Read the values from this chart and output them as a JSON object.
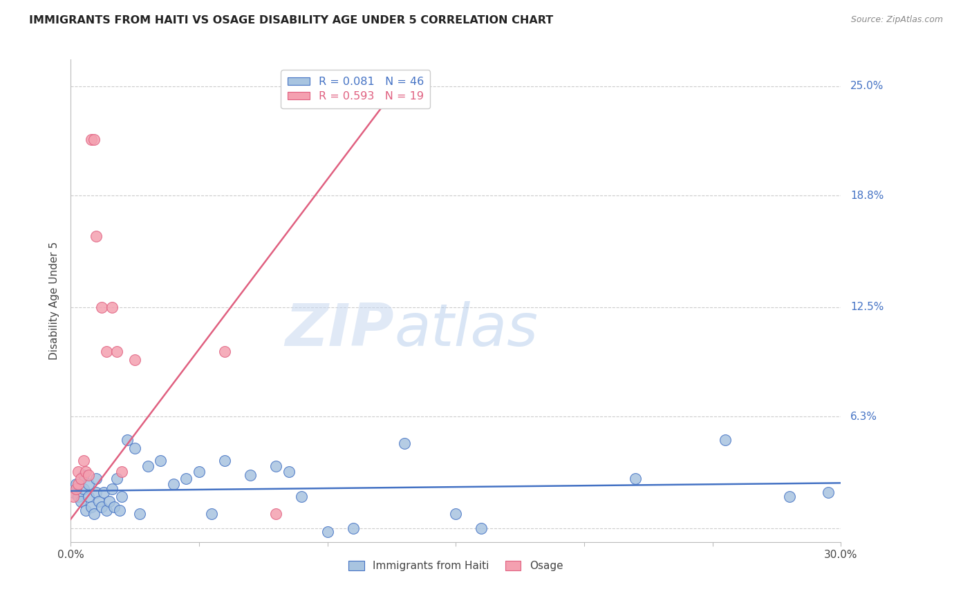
{
  "title": "IMMIGRANTS FROM HAITI VS OSAGE DISABILITY AGE UNDER 5 CORRELATION CHART",
  "source": "Source: ZipAtlas.com",
  "ylabel": "Disability Age Under 5",
  "xlim": [
    0.0,
    0.3
  ],
  "ylim": [
    -0.008,
    0.265
  ],
  "legend_haiti": "Immigrants from Haiti",
  "legend_osage": "Osage",
  "legend_r_haiti": "R = 0.081",
  "legend_n_haiti": "N = 46",
  "legend_r_osage": "R = 0.593",
  "legend_n_osage": "N = 19",
  "color_haiti": "#a8c4e0",
  "color_osage": "#f4a0b0",
  "color_haiti_line": "#4472c4",
  "color_osage_line": "#e06080",
  "color_title": "#222222",
  "color_source": "#888888",
  "color_right_labels": "#4472c4",
  "watermark_zip": "ZIP",
  "watermark_atlas": "atlas",
  "haiti_x": [
    0.001,
    0.002,
    0.003,
    0.004,
    0.005,
    0.005,
    0.006,
    0.007,
    0.007,
    0.008,
    0.009,
    0.01,
    0.01,
    0.011,
    0.012,
    0.013,
    0.014,
    0.015,
    0.016,
    0.017,
    0.018,
    0.019,
    0.02,
    0.022,
    0.025,
    0.027,
    0.03,
    0.035,
    0.04,
    0.045,
    0.05,
    0.055,
    0.06,
    0.07,
    0.08,
    0.085,
    0.09,
    0.1,
    0.11,
    0.13,
    0.15,
    0.16,
    0.22,
    0.255,
    0.28,
    0.295
  ],
  "haiti_y": [
    0.02,
    0.025,
    0.018,
    0.015,
    0.022,
    0.03,
    0.01,
    0.018,
    0.025,
    0.012,
    0.008,
    0.02,
    0.028,
    0.015,
    0.012,
    0.02,
    0.01,
    0.015,
    0.022,
    0.012,
    0.028,
    0.01,
    0.018,
    0.05,
    0.045,
    0.008,
    0.035,
    0.038,
    0.025,
    0.028,
    0.032,
    0.008,
    0.038,
    0.03,
    0.035,
    0.032,
    0.018,
    -0.002,
    0.0,
    0.048,
    0.008,
    0.0,
    0.028,
    0.05,
    0.018,
    0.02
  ],
  "osage_x": [
    0.001,
    0.002,
    0.003,
    0.003,
    0.004,
    0.005,
    0.006,
    0.007,
    0.008,
    0.009,
    0.01,
    0.012,
    0.014,
    0.016,
    0.018,
    0.02,
    0.025,
    0.06,
    0.08
  ],
  "osage_y": [
    0.018,
    0.022,
    0.032,
    0.025,
    0.028,
    0.038,
    0.032,
    0.03,
    0.22,
    0.22,
    0.165,
    0.125,
    0.1,
    0.125,
    0.1,
    0.032,
    0.095,
    0.1,
    0.008
  ],
  "osage_line_x": [
    0.0,
    0.13
  ],
  "osage_line_y": [
    0.005,
    0.255
  ]
}
